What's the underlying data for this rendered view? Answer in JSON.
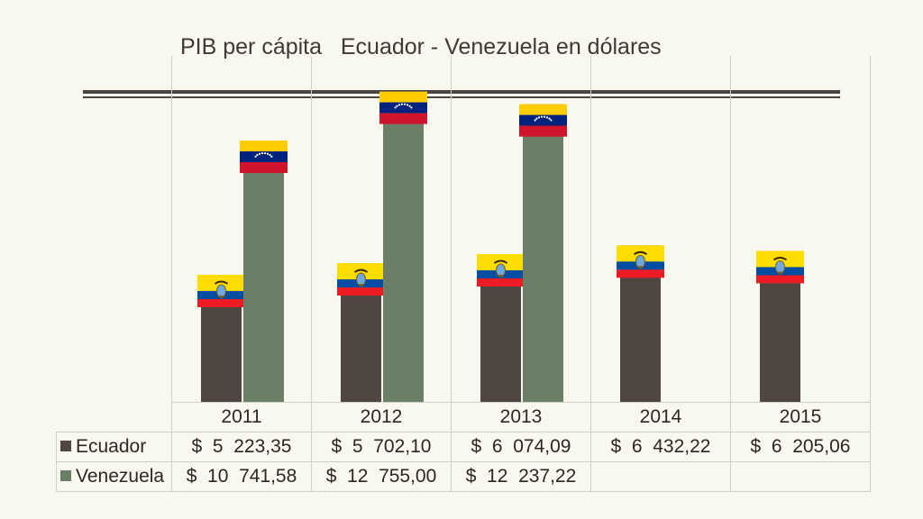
{
  "chart_data": {
    "type": "bar",
    "title": "PIB per cápita   Ecuador - Venezuela en dólares",
    "categories": [
      "2011",
      "2012",
      "2013",
      "2014",
      "2015"
    ],
    "series": [
      {
        "name": "Ecuador",
        "values": [
          5223.35,
          5702.1,
          6074.09,
          6432.22,
          6205.06
        ],
        "labels": [
          "$  5  223,35",
          "$  5  702,10",
          "$  6  074,09",
          "$  6  432,22",
          "$  6  205,06"
        ],
        "color": "#504641",
        "flag": "ecuador-flag"
      },
      {
        "name": "Venezuela",
        "values": [
          10741.58,
          12755.0,
          12237.22,
          null,
          null
        ],
        "labels": [
          "$  10  741,58",
          "$  12  755,00",
          "$  12  237,22",
          "",
          ""
        ],
        "color": "#6b7f67",
        "flag": "venezuela-flag"
      }
    ],
    "ylim": [
      0,
      13000
    ],
    "grid": true,
    "legend": "data-table"
  }
}
